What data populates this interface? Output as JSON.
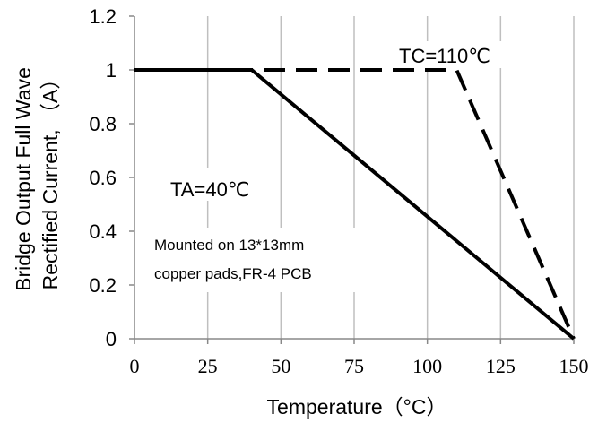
{
  "chart_data": {
    "type": "line",
    "xlabel": "Temperature（°C）",
    "ylabel_line1": "Bridge Output Full Wave",
    "ylabel_line2": "Rectified  Current, （A）",
    "xlim": [
      0,
      150
    ],
    "ylim": [
      0,
      1.2
    ],
    "x_ticks": [
      0,
      25,
      50,
      75,
      100,
      125,
      150
    ],
    "x_tick_labels": [
      "0",
      "25",
      "50",
      "75",
      "100",
      "125",
      "150"
    ],
    "y_ticks": [
      0,
      0.2,
      0.4,
      0.6,
      0.8,
      1.0,
      1.2
    ],
    "y_tick_labels": [
      "0",
      "0.2",
      "0.4",
      "0.6",
      "0.8",
      "1",
      "1.2"
    ],
    "grid": "vertical",
    "series": [
      {
        "name": "TA=40℃",
        "style": "solid",
        "x": [
          0,
          40,
          150
        ],
        "y": [
          1.0,
          1.0,
          0.0
        ]
      },
      {
        "name": "TC=110℃",
        "style": "dashed",
        "x": [
          0,
          110,
          150
        ],
        "y": [
          1.0,
          1.0,
          0.0
        ]
      }
    ],
    "annotations": [
      {
        "text": "TC=110℃"
      },
      {
        "text": "TA=40℃"
      },
      {
        "text": "Mounted on 13*13mm"
      },
      {
        "text": "copper pads,FR-4 PCB"
      }
    ],
    "colors": {
      "line": "#000000",
      "grid": "#bfbfbf",
      "axis": "#888888"
    }
  }
}
